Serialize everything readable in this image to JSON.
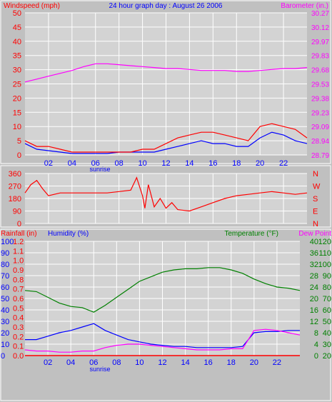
{
  "title": "24 hour graph day : August 26 2006",
  "colors": {
    "background": "#c0c0c0",
    "plot": "#d3d3d3",
    "grid": "#ffffff",
    "wind": "#ff0000",
    "gust_avg": "#0000ff",
    "barometer": "#ff00ff",
    "direction": "#ff0000",
    "rainfall": "#ff0000",
    "humidity": "#0000ff",
    "temperature": "#008000",
    "dewpoint": "#ff00ff"
  },
  "chart_data": [
    {
      "type": "line",
      "name": "wind-barometer",
      "left_axis_label": "Windspeed (mph)",
      "right_axis_label": "Barometer (in.)",
      "x_ticks": [
        "02",
        "04",
        "06",
        "08",
        "10",
        "12",
        "14",
        "16",
        "18",
        "20",
        "22"
      ],
      "sunrise_label": "sunrise",
      "left_ticks": [
        "50",
        "45",
        "40",
        "35",
        "30",
        "25",
        "20",
        "15",
        "10",
        "5",
        "0"
      ],
      "right_ticks": [
        "30.27",
        "30.12",
        "29.97",
        "29.83",
        "29.68",
        "29.53",
        "29.38",
        "29.23",
        "29.09",
        "28.94",
        "28.79"
      ],
      "ylim_left": [
        0,
        50
      ],
      "ylim_right": [
        28.79,
        30.27
      ],
      "xlim": [
        0,
        24
      ],
      "series": [
        {
          "role": "wind-speed",
          "x": [
            0,
            1,
            2,
            3,
            4,
            5,
            6,
            7,
            8,
            9,
            10,
            11,
            12,
            13,
            14,
            15,
            16,
            17,
            18,
            19,
            20,
            21,
            22,
            23,
            24
          ],
          "y": [
            5,
            3,
            3,
            2,
            1,
            1,
            1,
            1,
            1,
            1,
            2,
            2,
            4,
            6,
            7,
            8,
            8,
            7,
            6,
            5,
            10,
            11,
            10,
            9,
            6
          ]
        },
        {
          "role": "wind-average",
          "x": [
            0,
            1,
            2,
            3,
            4,
            5,
            6,
            7,
            8,
            9,
            10,
            11,
            12,
            13,
            14,
            15,
            16,
            17,
            18,
            19,
            20,
            21,
            22,
            23,
            24
          ],
          "y": [
            4,
            2,
            1.5,
            1,
            0.5,
            0.5,
            0.5,
            0.5,
            1,
            1,
            1,
            1,
            2,
            3,
            4,
            5,
            4,
            4,
            3,
            3,
            6,
            8,
            7,
            5,
            4
          ]
        },
        {
          "role": "barometer",
          "x": [
            0,
            1,
            2,
            3,
            4,
            5,
            6,
            7,
            8,
            9,
            10,
            11,
            12,
            13,
            14,
            15,
            16,
            17,
            18,
            19,
            20,
            21,
            22,
            23,
            24
          ],
          "y": [
            29.55,
            29.58,
            29.61,
            29.64,
            29.67,
            29.71,
            29.74,
            29.74,
            29.73,
            29.72,
            29.71,
            29.7,
            29.69,
            29.69,
            29.68,
            29.67,
            29.67,
            29.67,
            29.66,
            29.66,
            29.67,
            29.68,
            29.69,
            29.69,
            29.7
          ]
        }
      ]
    },
    {
      "type": "line",
      "name": "wind-direction",
      "left_ticks": [
        "360",
        "270",
        "180",
        "90",
        "0"
      ],
      "right_ticks": [
        "N",
        "W",
        "S",
        "E",
        "N"
      ],
      "ylim": [
        0,
        360
      ],
      "xlim": [
        0,
        24
      ],
      "series": [
        {
          "role": "direction",
          "x": [
            0,
            0.5,
            1,
            1.5,
            2,
            3,
            4,
            5,
            6,
            7,
            8,
            9,
            9.5,
            10,
            10.2,
            10.5,
            11,
            11.5,
            12,
            12.5,
            13,
            14,
            15,
            16,
            17,
            18,
            19,
            20,
            21,
            22,
            23,
            24
          ],
          "y": [
            220,
            280,
            310,
            250,
            200,
            220,
            220,
            220,
            220,
            220,
            230,
            240,
            330,
            200,
            110,
            280,
            120,
            180,
            110,
            150,
            100,
            90,
            120,
            150,
            180,
            200,
            210,
            220,
            230,
            220,
            210,
            220
          ]
        }
      ]
    },
    {
      "type": "line",
      "name": "rain-humidity-temperature",
      "label_rainfall": "Rainfall (in)",
      "label_humidity": "Humidity (%)",
      "label_temperature": "Temperature (°F)",
      "label_dewpoint": "Dew Point",
      "x_ticks": [
        "02",
        "04",
        "06",
        "08",
        "10",
        "12",
        "14",
        "16",
        "18",
        "20",
        "22"
      ],
      "sunrise_label": "sunrise",
      "rain_ticks": [
        "1.2",
        "1.1",
        "1.0",
        "0.9",
        "0.8",
        "0.7",
        "0.6",
        "0.5",
        "0.4",
        "0.3",
        "0.2",
        "0.1",
        "0.0"
      ],
      "humidity_ticks": [
        "100",
        "90",
        "80",
        "70",
        "60",
        "50",
        "40",
        "30",
        "20",
        "10",
        "0"
      ],
      "temp_c_ticks": [
        "40",
        "36",
        "32",
        "28",
        "24",
        "20",
        "16",
        "12",
        "8",
        "4",
        "0"
      ],
      "temp_f_ticks": [
        "120",
        "110",
        "100",
        "90",
        "80",
        "70",
        "60",
        "50",
        "40",
        "30",
        "20"
      ],
      "ylim_temperature_f": [
        20,
        120
      ],
      "ylim_humidity": [
        0,
        100
      ],
      "xlim": [
        0,
        24
      ],
      "series": [
        {
          "role": "rainfall",
          "x": [
            0,
            24
          ],
          "y": [
            0,
            0
          ]
        },
        {
          "role": "temperature",
          "x": [
            0,
            1,
            2,
            3,
            4,
            5,
            6,
            7,
            8,
            9,
            10,
            11,
            12,
            13,
            14,
            15,
            16,
            17,
            18,
            19,
            20,
            21,
            22,
            23,
            24
          ],
          "y": [
            77,
            76,
            71,
            66,
            63,
            62,
            58,
            64,
            71,
            78,
            85,
            89,
            93,
            95,
            96,
            96,
            97,
            97,
            95,
            92,
            87,
            83,
            80,
            79,
            77
          ]
        },
        {
          "role": "humidity",
          "x": [
            0,
            1,
            2,
            3,
            4,
            5,
            6,
            7,
            8,
            9,
            10,
            11,
            12,
            13,
            14,
            15,
            16,
            17,
            18,
            19,
            20,
            21,
            22,
            23,
            24
          ],
          "y": [
            14,
            14,
            17,
            20,
            22,
            25,
            28,
            22,
            18,
            14,
            12,
            10,
            9,
            8,
            8,
            7,
            7,
            7,
            7,
            8,
            20,
            21,
            21,
            22,
            22
          ]
        },
        {
          "role": "dewpoint",
          "x": [
            0,
            1,
            2,
            3,
            4,
            5,
            6,
            7,
            8,
            9,
            10,
            11,
            12,
            13,
            14,
            15,
            16,
            17,
            18,
            19,
            20,
            21,
            22,
            23,
            24
          ],
          "y": [
            25,
            24,
            24,
            23,
            23,
            24,
            24,
            27,
            29,
            30,
            30,
            29,
            28,
            27,
            26,
            25,
            25,
            25,
            26,
            26,
            42,
            43,
            42,
            40,
            38
          ]
        }
      ]
    }
  ]
}
